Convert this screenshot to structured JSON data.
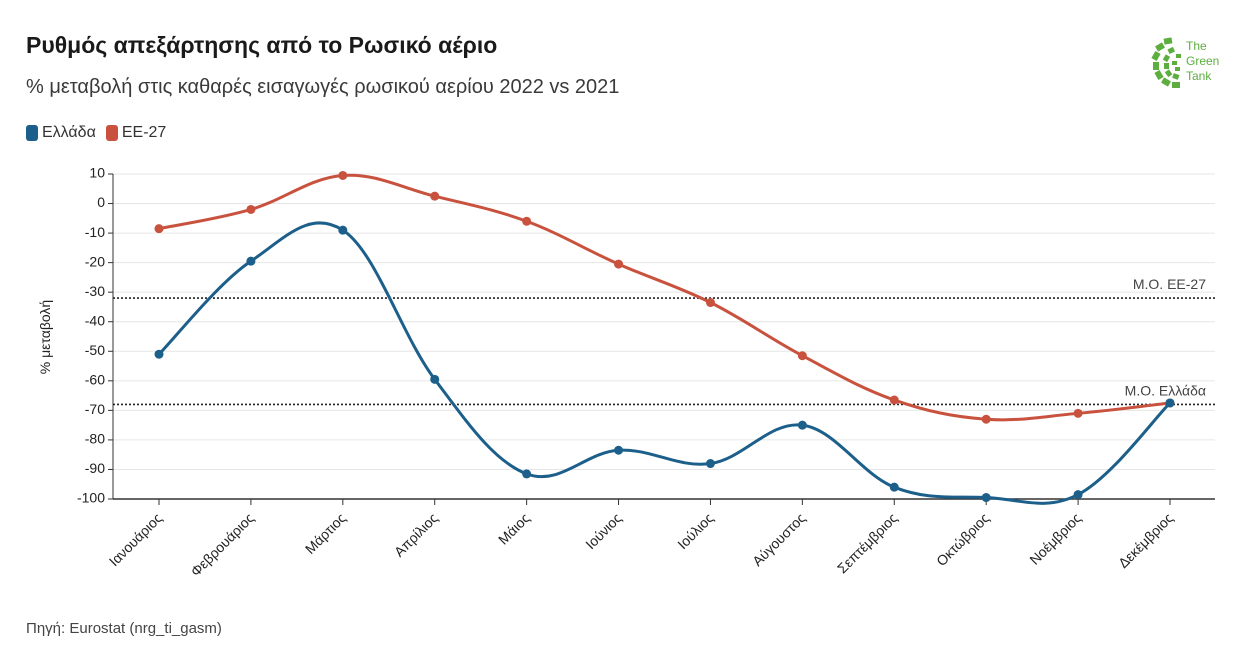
{
  "header": {
    "title": "Ρυθμός απεξάρτησης από το Ρωσικό αέριο",
    "subtitle": "% μεταβολή στις καθαρές εισαγωγές ρωσικού αερίου 2022 vs 2021"
  },
  "logo": {
    "line1": "The",
    "line2": "Green",
    "line3": "Tank",
    "color": "#5cae3f"
  },
  "source": "Πηγή: Eurostat (nrg_ti_gasm)",
  "chart_data": {
    "type": "line",
    "categories": [
      "Ιανουάριος",
      "Φεβρουάριος",
      "Μάρτιος",
      "Απρίλιος",
      "Μάιος",
      "Ιούνιος",
      "Ιούλιος",
      "Αύγουστος",
      "Σεπτέμβριος",
      "Οκτώβριος",
      "Νοέμβριος",
      "Δεκέμβριος"
    ],
    "series": [
      {
        "name": "Ελλάδα",
        "color": "#1c5f8a",
        "values": [
          -51,
          -19.5,
          -9,
          -59.5,
          -91.5,
          -83.5,
          -88,
          -75,
          -96,
          -99.5,
          -98.5,
          -67.5
        ]
      },
      {
        "name": "ΕΕ-27",
        "color": "#c9523e",
        "values": [
          -8.5,
          -2,
          9.5,
          2.5,
          -6,
          -20.5,
          -33.5,
          -51.5,
          -66.5,
          -73,
          -71,
          -67.5
        ]
      }
    ],
    "reference_lines": [
      {
        "label": "Μ.Ο. ΕΕ-27",
        "value": -32
      },
      {
        "label": "Μ.Ο. Ελλάδα",
        "value": -68
      }
    ],
    "ylabel": "% μεταβολή",
    "xlabel": "",
    "ylim": [
      -100,
      10
    ],
    "yticks": [
      10,
      0,
      -10,
      -20,
      -30,
      -40,
      -50,
      -60,
      -70,
      -80,
      -90,
      -100
    ],
    "grid": true,
    "legend_position": "top-left"
  }
}
